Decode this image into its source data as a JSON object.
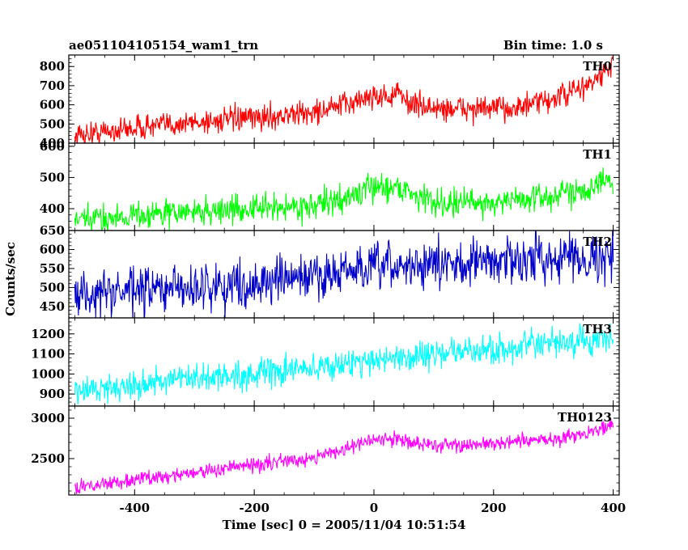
{
  "header": {
    "title": "ae051104105154_wam1_trn",
    "bin_time": "Bin time: 1.0 s"
  },
  "chart_data": {
    "type": "line",
    "xlabel": "Time [sec] 0 = 2005/11/04 10:51:54",
    "ylabel": "Counts/sec",
    "xlim": [
      -510,
      410
    ],
    "xticks": [
      -400,
      -200,
      0,
      200,
      400
    ],
    "panels": [
      {
        "name": "TH0",
        "color": "#ff0000",
        "ylim": [
          400,
          860
        ],
        "yticks": [
          400,
          500,
          600,
          700,
          800
        ],
        "noise": 32,
        "trend": [
          [
            -500,
            440
          ],
          [
            -400,
            480
          ],
          [
            -300,
            510
          ],
          [
            -200,
            530
          ],
          [
            -100,
            560
          ],
          [
            -50,
            600
          ],
          [
            0,
            650
          ],
          [
            25,
            640
          ],
          [
            40,
            660
          ],
          [
            60,
            610
          ],
          [
            100,
            580
          ],
          [
            200,
            580
          ],
          [
            250,
            590
          ],
          [
            300,
            630
          ],
          [
            350,
            690
          ],
          [
            380,
            750
          ],
          [
            400,
            820
          ]
        ]
      },
      {
        "name": "TH1",
        "color": "#00ff00",
        "ylim": [
          330,
          610
        ],
        "yticks": [
          400,
          500,
          600
        ],
        "noise": 22,
        "trend": [
          [
            -500,
            360
          ],
          [
            -400,
            380
          ],
          [
            -300,
            390
          ],
          [
            -200,
            400
          ],
          [
            -100,
            410
          ],
          [
            -50,
            430
          ],
          [
            0,
            470
          ],
          [
            40,
            470
          ],
          [
            100,
            420
          ],
          [
            200,
            420
          ],
          [
            300,
            440
          ],
          [
            400,
            490
          ]
        ]
      },
      {
        "name": "TH2",
        "color": "#0000cc",
        "ylim": [
          420,
          650
        ],
        "yticks": [
          450,
          500,
          550,
          600,
          650
        ],
        "noise": 30,
        "trend": [
          [
            -500,
            480
          ],
          [
            -400,
            490
          ],
          [
            -300,
            500
          ],
          [
            -200,
            510
          ],
          [
            -100,
            530
          ],
          [
            0,
            550
          ],
          [
            100,
            560
          ],
          [
            200,
            570
          ],
          [
            300,
            580
          ],
          [
            400,
            580
          ]
        ]
      },
      {
        "name": "TH3",
        "color": "#00ffff",
        "ylim": [
          840,
          1280
        ],
        "yticks": [
          900,
          1000,
          1100,
          1200
        ],
        "noise": 35,
        "trend": [
          [
            -500,
            910
          ],
          [
            -400,
            950
          ],
          [
            -300,
            975
          ],
          [
            -200,
            1000
          ],
          [
            -100,
            1030
          ],
          [
            0,
            1070
          ],
          [
            100,
            1100
          ],
          [
            200,
            1120
          ],
          [
            300,
            1150
          ],
          [
            400,
            1170
          ]
        ]
      },
      {
        "name": "TH0123",
        "color": "#ff00ff",
        "ylim": [
          2050,
          3150
        ],
        "yticks": [
          2500,
          3000
        ],
        "noise": 45,
        "trend": [
          [
            -500,
            2140
          ],
          [
            -400,
            2240
          ],
          [
            -300,
            2330
          ],
          [
            -200,
            2420
          ],
          [
            -100,
            2520
          ],
          [
            -50,
            2620
          ],
          [
            0,
            2730
          ],
          [
            30,
            2740
          ],
          [
            60,
            2720
          ],
          [
            100,
            2660
          ],
          [
            200,
            2680
          ],
          [
            300,
            2740
          ],
          [
            350,
            2810
          ],
          [
            400,
            2920
          ]
        ]
      }
    ]
  }
}
